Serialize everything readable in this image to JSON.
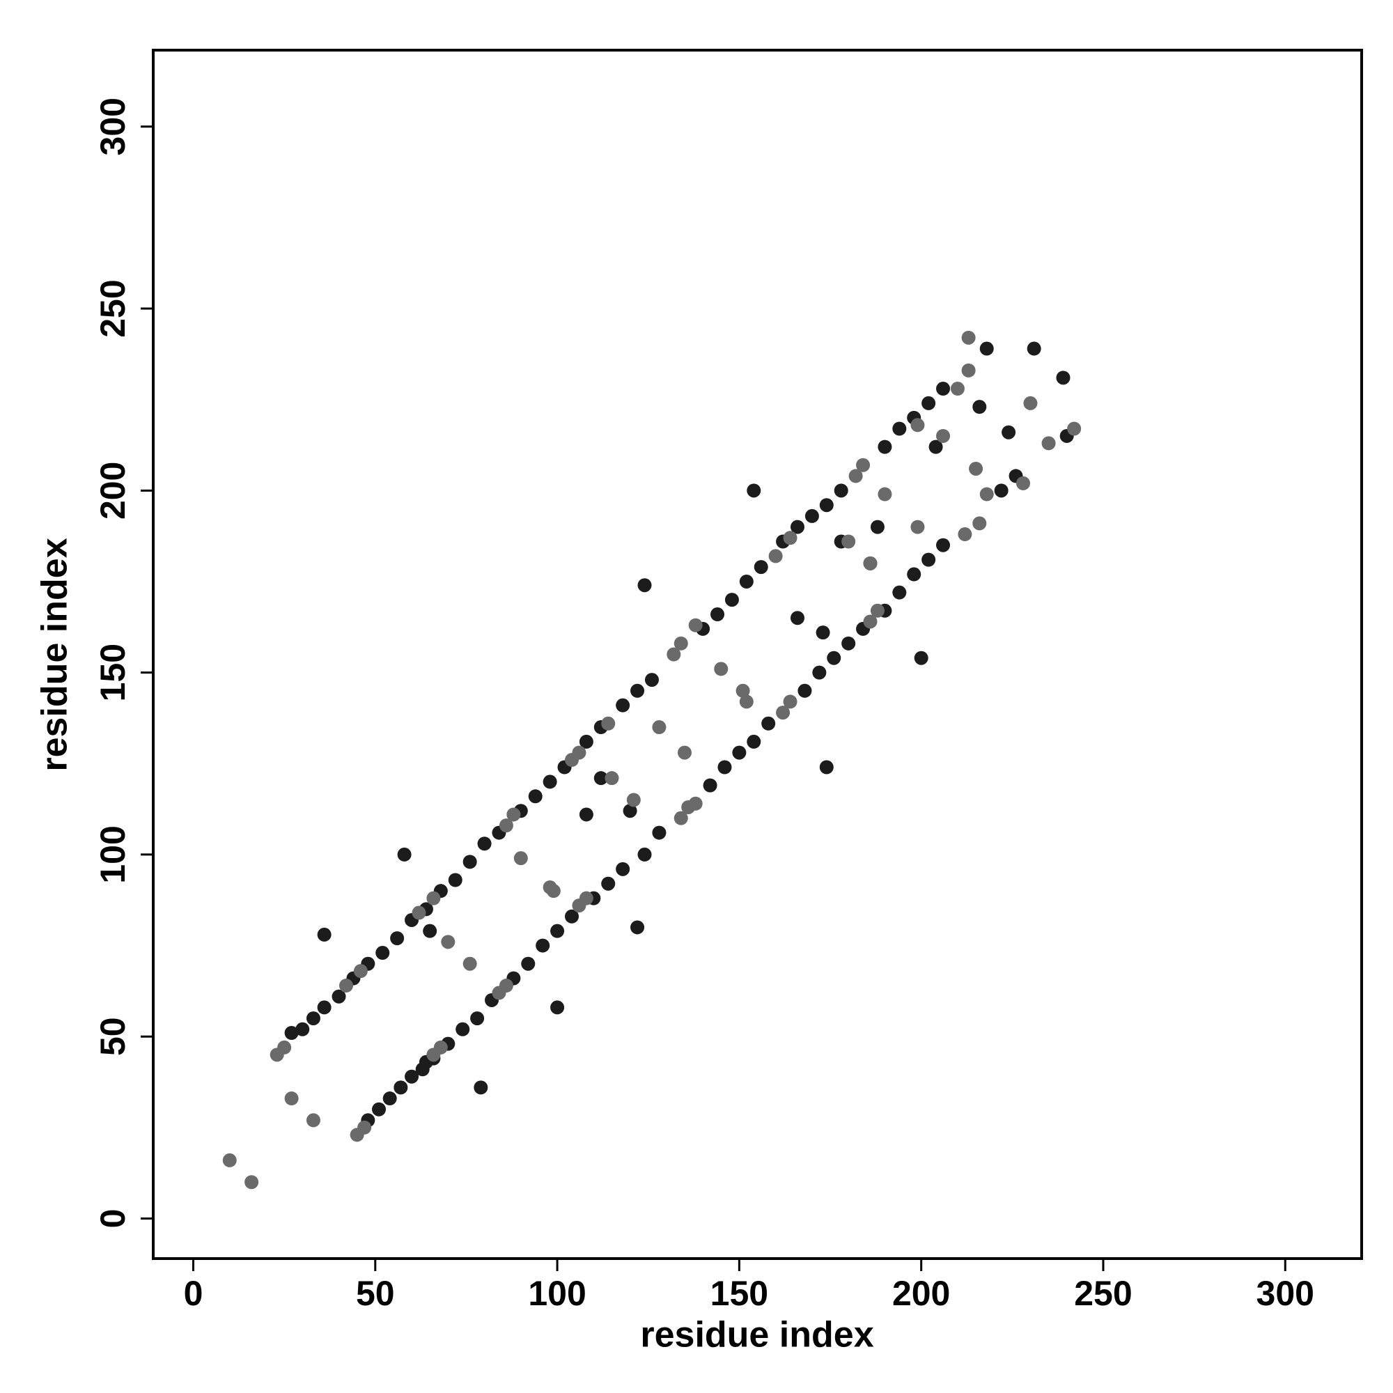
{
  "chart_data": {
    "type": "scatter",
    "xlabel": "residue index",
    "ylabel": "residue index",
    "xlim": [
      -11,
      321
    ],
    "ylim": [
      -11,
      321
    ],
    "xticks": [
      0,
      50,
      100,
      150,
      200,
      250,
      300
    ],
    "yticks": [
      0,
      50,
      100,
      150,
      200,
      250,
      300
    ],
    "series": [
      {
        "color": "#1c1c1c",
        "x": [
          27,
          30,
          33,
          36,
          40,
          44,
          48,
          52,
          56,
          60,
          64,
          68,
          72,
          76,
          80,
          84,
          90,
          94,
          98,
          102,
          108,
          112,
          118,
          122,
          126,
          140,
          144,
          148,
          152,
          156,
          162,
          166,
          170,
          174,
          178,
          190,
          194,
          198,
          202,
          206,
          48,
          51,
          54,
          57,
          60,
          63,
          66,
          70,
          74,
          78,
          82,
          88,
          92,
          96,
          100,
          104,
          110,
          114,
          118,
          124,
          128,
          142,
          146,
          150,
          154,
          158,
          168,
          172,
          176,
          180,
          184,
          190,
          194,
          198,
          202,
          206,
          222,
          226,
          231,
          239,
          216,
          218,
          240,
          224,
          36,
          100,
          58,
          122,
          124,
          154,
          200,
          174,
          79,
          65,
          64,
          112,
          108,
          120,
          166,
          178,
          186,
          173,
          188,
          204
        ],
        "y": [
          51,
          52,
          55,
          58,
          61,
          66,
          70,
          73,
          77,
          82,
          85,
          90,
          93,
          98,
          103,
          106,
          112,
          116,
          120,
          124,
          131,
          135,
          141,
          145,
          148,
          162,
          166,
          170,
          175,
          179,
          186,
          190,
          193,
          196,
          200,
          212,
          217,
          220,
          224,
          228,
          27,
          30,
          33,
          36,
          39,
          41,
          44,
          48,
          52,
          55,
          60,
          66,
          70,
          75,
          79,
          83,
          88,
          92,
          96,
          100,
          106,
          119,
          124,
          128,
          131,
          136,
          145,
          150,
          154,
          158,
          162,
          167,
          172,
          177,
          181,
          185,
          200,
          204,
          239,
          231,
          223,
          239,
          215,
          216,
          78,
          58,
          100,
          80,
          174,
          200,
          154,
          124,
          36,
          79,
          43,
          121,
          111,
          112,
          165,
          186,
          180,
          161,
          190,
          212
        ]
      },
      {
        "color": "#6a6a6a",
        "x": [
          23,
          25,
          42,
          46,
          62,
          66,
          86,
          88,
          104,
          106,
          114,
          132,
          134,
          138,
          160,
          164,
          182,
          184,
          210,
          213,
          45,
          47,
          66,
          68,
          84,
          86,
          106,
          108,
          134,
          136,
          138,
          162,
          164,
          186,
          188,
          212,
          216,
          228,
          10,
          16,
          27,
          33,
          70,
          76,
          90,
          99,
          98,
          115,
          121,
          128,
          135,
          145,
          151,
          152,
          180,
          186,
          190,
          199,
          215,
          206,
          218,
          199,
          213,
          235,
          242,
          230
        ],
        "y": [
          45,
          47,
          64,
          68,
          84,
          88,
          108,
          111,
          126,
          128,
          136,
          155,
          158,
          163,
          182,
          187,
          204,
          207,
          228,
          233,
          23,
          25,
          45,
          47,
          62,
          64,
          86,
          88,
          110,
          113,
          114,
          139,
          142,
          164,
          167,
          188,
          191,
          202,
          16,
          10,
          33,
          27,
          76,
          70,
          99,
          90,
          91,
          121,
          115,
          135,
          128,
          151,
          145,
          142,
          186,
          180,
          199,
          190,
          206,
          215,
          199,
          218,
          242,
          213,
          217,
          224
        ]
      }
    ]
  }
}
